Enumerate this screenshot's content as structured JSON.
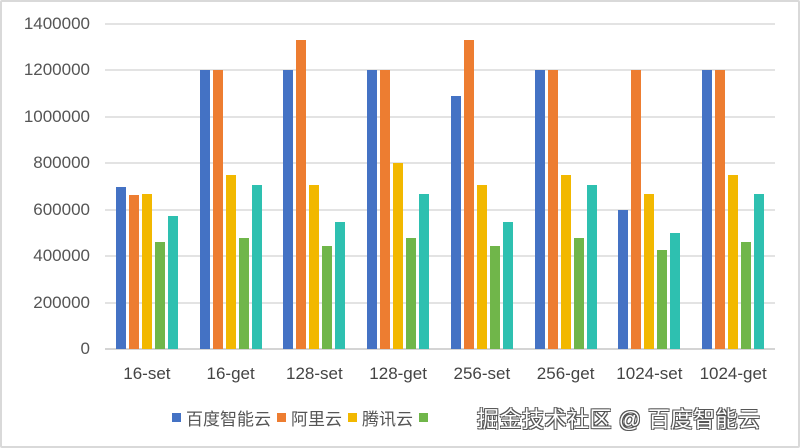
{
  "chart_data": {
    "type": "bar",
    "title": "",
    "xlabel": "",
    "ylabel": "",
    "ylim": [
      0,
      1400000
    ],
    "yticks": [
      0,
      200000,
      400000,
      600000,
      800000,
      1000000,
      1200000,
      1400000
    ],
    "ytick_labels": [
      "0",
      "200000",
      "400000",
      "600000",
      "800000",
      "1000000",
      "1200000",
      "1400000"
    ],
    "grid": true,
    "legend_position": "bottom",
    "categories": [
      "16-set",
      "16-get",
      "128-set",
      "128-get",
      "256-set",
      "256-get",
      "1024-set",
      "1024-get"
    ],
    "series": [
      {
        "name": "百度智能云",
        "color": "#4472c4",
        "values": [
          700000,
          1200000,
          1200000,
          1200000,
          1090000,
          1200000,
          600000,
          1200000
        ]
      },
      {
        "name": "阿里云",
        "color": "#ed7d31",
        "values": [
          663000,
          1200000,
          1330000,
          1200000,
          1330000,
          1200000,
          1200000,
          1200000
        ]
      },
      {
        "name": "腾讯云",
        "color": "#f2b800",
        "values": [
          667000,
          750000,
          708000,
          800000,
          708000,
          750000,
          667000,
          750000
        ]
      },
      {
        "name": "",
        "color": "#70b64a",
        "values": [
          460000,
          478000,
          443000,
          478000,
          443000,
          478000,
          427000,
          460000
        ]
      },
      {
        "name": "",
        "color": "#2ec0b0",
        "values": [
          573000,
          708000,
          548000,
          667000,
          548000,
          708000,
          500000,
          667000
        ]
      }
    ]
  },
  "watermark": "掘金技术社区 @ 百度智能云"
}
